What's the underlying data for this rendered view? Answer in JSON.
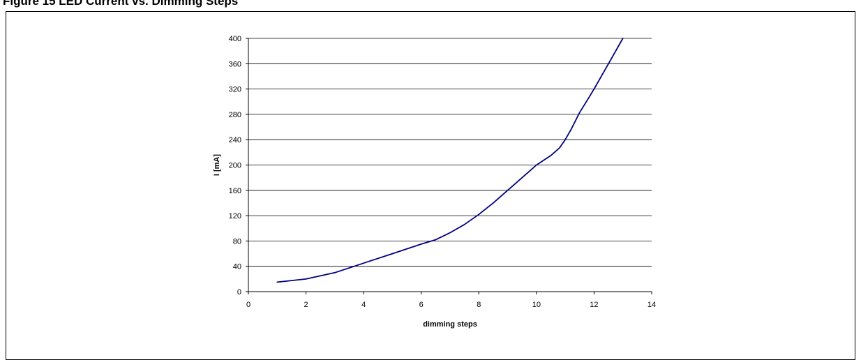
{
  "figure": {
    "heading": "Figure 15  LED Current vs. Dimming Steps"
  },
  "chart_data": {
    "type": "line",
    "title": "",
    "xlabel": "dimming steps",
    "ylabel": "I [mA]",
    "xlim": [
      0,
      14
    ],
    "ylim": [
      0,
      400
    ],
    "xticks": [
      0,
      2,
      4,
      6,
      8,
      10,
      12,
      14
    ],
    "yticks": [
      0,
      40,
      80,
      120,
      160,
      200,
      240,
      280,
      320,
      360,
      400
    ],
    "grid": "horizontal",
    "legend": "none",
    "line_color": "#000080",
    "series": [
      {
        "x": [
          1,
          2,
          3,
          4,
          5,
          6,
          6.5,
          7,
          7.5,
          8,
          8.5,
          9,
          9.5,
          10,
          10.5,
          10.8,
          11,
          11.2,
          11.5,
          11.8,
          12,
          12.5,
          13
        ],
        "y": [
          15,
          20,
          30,
          45,
          60,
          75,
          82,
          93,
          106,
          122,
          140,
          160,
          180,
          200,
          215,
          227,
          240,
          256,
          283,
          305,
          320,
          360,
          400
        ]
      }
    ]
  }
}
